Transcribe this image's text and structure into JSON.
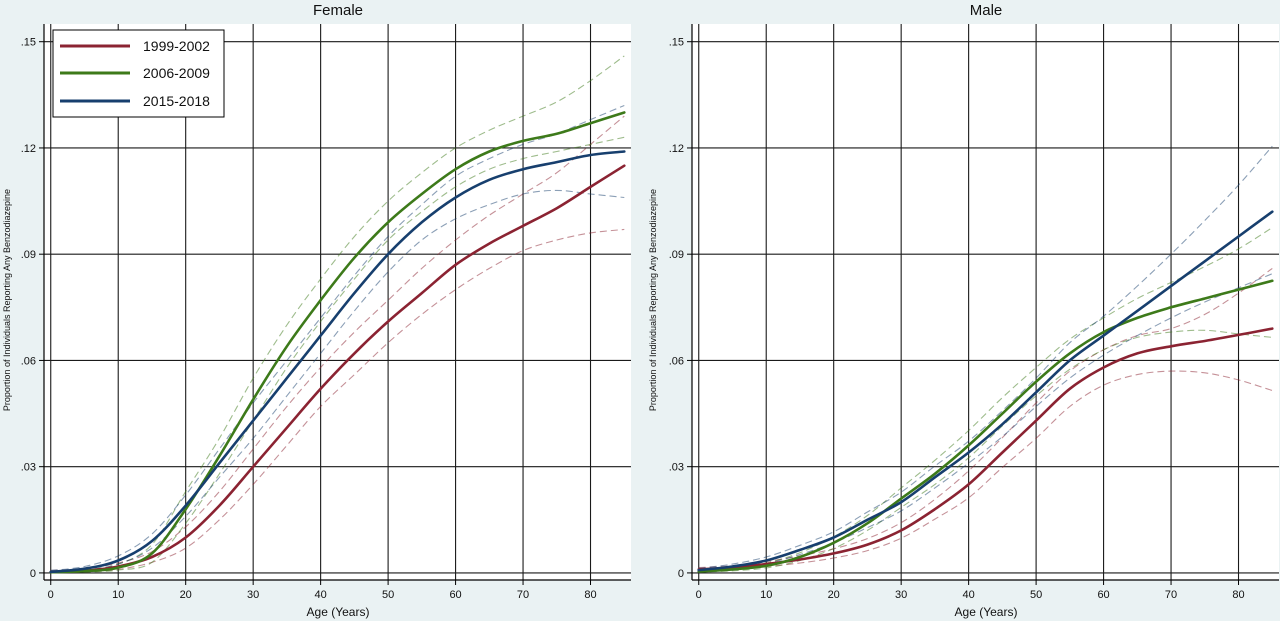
{
  "chart_data": [
    {
      "type": "line",
      "title": "Female",
      "xlabel": "Age (Years)",
      "ylabel": "Proportion of Individuals Reporting Any Benzodiazepine",
      "xlim": [
        -1,
        86
      ],
      "ylim": [
        -0.002,
        0.155
      ],
      "x_ticks": [
        0,
        10,
        20,
        30,
        40,
        50,
        60,
        70,
        80
      ],
      "y_ticks": [
        0,
        0.03,
        0.06,
        0.09,
        0.12,
        0.15
      ],
      "x_tick_labels": [
        "0",
        "10",
        "20",
        "30",
        "40",
        "50",
        "60",
        "70",
        "80"
      ],
      "y_tick_labels": [
        "0",
        ".03",
        ".06",
        ".09",
        ".12",
        ".15"
      ],
      "grid": true,
      "legend": "top-left",
      "x": [
        0,
        5,
        10,
        15,
        20,
        25,
        30,
        35,
        40,
        45,
        50,
        55,
        60,
        65,
        70,
        75,
        80,
        85
      ],
      "series": [
        {
          "name": "1999-2002",
          "color": "#8b2332",
          "values": [
            0.0003,
            0.0006,
            0.0018,
            0.0045,
            0.01,
            0.019,
            0.03,
            0.041,
            0.052,
            0.062,
            0.071,
            0.079,
            0.087,
            0.093,
            0.098,
            0.103,
            0.109,
            0.115
          ],
          "ci_lower": [
            0.0001,
            0.0003,
            0.001,
            0.003,
            0.007,
            0.015,
            0.025,
            0.036,
            0.047,
            0.056,
            0.065,
            0.073,
            0.08,
            0.086,
            0.091,
            0.094,
            0.096,
            0.097
          ],
          "ci_upper": [
            0.0007,
            0.0012,
            0.0028,
            0.006,
            0.013,
            0.023,
            0.035,
            0.047,
            0.058,
            0.068,
            0.077,
            0.086,
            0.094,
            0.101,
            0.107,
            0.113,
            0.121,
            0.129
          ]
        },
        {
          "name": "2006-2009",
          "color": "#3d7a1a",
          "values": [
            0.0002,
            0.0005,
            0.0015,
            0.0055,
            0.018,
            0.033,
            0.049,
            0.064,
            0.077,
            0.089,
            0.099,
            0.107,
            0.114,
            0.119,
            0.122,
            0.124,
            0.127,
            0.13
          ],
          "ci_lower": [
            0.0001,
            0.0002,
            0.0008,
            0.003,
            0.014,
            0.028,
            0.043,
            0.058,
            0.071,
            0.083,
            0.094,
            0.102,
            0.109,
            0.114,
            0.117,
            0.119,
            0.121,
            0.123
          ],
          "ci_upper": [
            0.0005,
            0.001,
            0.0025,
            0.008,
            0.023,
            0.038,
            0.055,
            0.07,
            0.083,
            0.095,
            0.105,
            0.113,
            0.12,
            0.125,
            0.129,
            0.133,
            0.139,
            0.146
          ]
        },
        {
          "name": "2015-2018",
          "color": "#173f6e",
          "values": [
            0.0003,
            0.0012,
            0.0035,
            0.009,
            0.019,
            0.031,
            0.043,
            0.055,
            0.067,
            0.079,
            0.09,
            0.099,
            0.106,
            0.111,
            0.114,
            0.116,
            0.118,
            0.119
          ],
          "ci_lower": [
            0.0001,
            0.0007,
            0.0025,
            0.007,
            0.016,
            0.027,
            0.038,
            0.05,
            0.062,
            0.074,
            0.085,
            0.094,
            0.1,
            0.104,
            0.107,
            0.108,
            0.107,
            0.106
          ],
          "ci_upper": [
            0.0007,
            0.0018,
            0.0048,
            0.011,
            0.022,
            0.035,
            0.048,
            0.06,
            0.072,
            0.084,
            0.095,
            0.104,
            0.112,
            0.117,
            0.121,
            0.124,
            0.128,
            0.132
          ]
        }
      ]
    },
    {
      "type": "line",
      "title": "Male",
      "xlabel": "Age (Years)",
      "ylabel": "Proportion of Individuals Reporting Any Benzodiazepine",
      "xlim": [
        -1,
        86
      ],
      "ylim": [
        -0.002,
        0.155
      ],
      "x_ticks": [
        0,
        10,
        20,
        30,
        40,
        50,
        60,
        70,
        80
      ],
      "y_ticks": [
        0,
        0.03,
        0.06,
        0.09,
        0.12,
        0.15
      ],
      "x_tick_labels": [
        "0",
        "10",
        "20",
        "30",
        "40",
        "50",
        "60",
        "70",
        "80"
      ],
      "y_tick_labels": [
        "0",
        ".03",
        ".06",
        ".09",
        ".12",
        ".15"
      ],
      "grid": true,
      "legend": "none",
      "x": [
        0,
        5,
        10,
        15,
        20,
        25,
        30,
        35,
        40,
        45,
        50,
        55,
        60,
        65,
        70,
        75,
        80,
        85
      ],
      "series": [
        {
          "name": "1999-2002",
          "color": "#8b2332",
          "values": [
            0.001,
            0.0015,
            0.0025,
            0.0038,
            0.0055,
            0.008,
            0.012,
            0.018,
            0.025,
            0.034,
            0.043,
            0.052,
            0.058,
            0.062,
            0.064,
            0.0655,
            0.0672,
            0.069
          ],
          "ci_lower": [
            0.0005,
            0.001,
            0.0018,
            0.0028,
            0.0042,
            0.0063,
            0.0098,
            0.0152,
            0.0212,
            0.0298,
            0.038,
            0.047,
            0.053,
            0.056,
            0.057,
            0.0565,
            0.0545,
            0.0515
          ],
          "ci_upper": [
            0.0015,
            0.002,
            0.0032,
            0.0048,
            0.0068,
            0.0097,
            0.0142,
            0.0208,
            0.0288,
            0.0382,
            0.048,
            0.057,
            0.063,
            0.067,
            0.069,
            0.073,
            0.079,
            0.086
          ]
        },
        {
          "name": "2006-2009",
          "color": "#3d7a1a",
          "values": [
            0.0004,
            0.001,
            0.002,
            0.0045,
            0.0085,
            0.014,
            0.021,
            0.028,
            0.036,
            0.045,
            0.054,
            0.062,
            0.068,
            0.072,
            0.075,
            0.0775,
            0.08,
            0.0825
          ],
          "ci_lower": [
            0.0002,
            0.0006,
            0.0014,
            0.0035,
            0.0069,
            0.012,
            0.0185,
            0.025,
            0.0325,
            0.0415,
            0.05,
            0.0575,
            0.063,
            0.0665,
            0.068,
            0.0685,
            0.0675,
            0.0665
          ],
          "ci_upper": [
            0.0007,
            0.0015,
            0.0028,
            0.0057,
            0.0102,
            0.0162,
            0.024,
            0.0318,
            0.0402,
            0.0495,
            0.058,
            0.066,
            0.072,
            0.0775,
            0.082,
            0.0865,
            0.0915,
            0.0975
          ]
        },
        {
          "name": "2015-2018",
          "color": "#173f6e",
          "values": [
            0.0008,
            0.0018,
            0.0035,
            0.0065,
            0.01,
            0.015,
            0.02,
            0.027,
            0.034,
            0.042,
            0.051,
            0.06,
            0.067,
            0.074,
            0.081,
            0.088,
            0.095,
            0.102
          ],
          "ci_lower": [
            0.0004,
            0.0012,
            0.0026,
            0.0052,
            0.0085,
            0.0128,
            0.0175,
            0.024,
            0.031,
            0.0385,
            0.047,
            0.055,
            0.0615,
            0.067,
            0.072,
            0.0765,
            0.0805,
            0.0845
          ],
          "ci_upper": [
            0.0013,
            0.0025,
            0.0045,
            0.0078,
            0.0116,
            0.0172,
            0.0228,
            0.0302,
            0.0372,
            0.0458,
            0.055,
            0.065,
            0.0725,
            0.081,
            0.09,
            0.0995,
            0.1095,
            0.1205
          ]
        }
      ]
    }
  ]
}
